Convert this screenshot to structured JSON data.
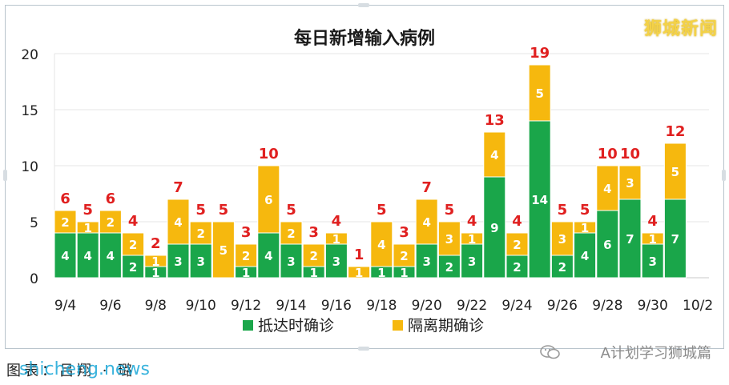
{
  "watermark": "狮城新闻",
  "caption": "图表：吕翔 · 璐",
  "caption_source": "shicheng.news",
  "account": "A计划学习狮城篇",
  "colors": {
    "arrived": "#1aa64a",
    "quarantine": "#f6b80e",
    "total_label": "#e02020"
  },
  "chart_data": {
    "type": "bar",
    "stacked": true,
    "title": "每日新增输入病例",
    "xlabel": "",
    "ylabel": "",
    "ylim": [
      0,
      20
    ],
    "yticks": [
      0,
      5,
      10,
      15,
      20
    ],
    "grid": true,
    "legend_position": "bottom",
    "categories": [
      "9/4",
      "9/5",
      "9/6",
      "9/7",
      "9/8",
      "9/9",
      "9/10",
      "9/11",
      "9/12",
      "9/13",
      "9/14",
      "9/15",
      "9/16",
      "9/17",
      "9/18",
      "9/19",
      "9/20",
      "9/21",
      "9/22",
      "9/23",
      "9/24",
      "9/25",
      "9/26",
      "9/27",
      "9/28",
      "9/29",
      "9/30",
      "10/1"
    ],
    "x_tick_labels": [
      "9/4",
      "9/6",
      "9/8",
      "9/10",
      "9/12",
      "9/14",
      "9/16",
      "9/18",
      "9/20",
      "9/22",
      "9/24",
      "9/26",
      "9/28",
      "9/30",
      "10/2"
    ],
    "series": [
      {
        "name": "抵达时确诊",
        "values": [
          4,
          4,
          4,
          2,
          1,
          3,
          3,
          0,
          1,
          4,
          3,
          1,
          3,
          0,
          1,
          1,
          3,
          2,
          3,
          9,
          2,
          14,
          2,
          4,
          6,
          7,
          3,
          7
        ]
      },
      {
        "name": "隔离期确诊",
        "values": [
          2,
          1,
          2,
          2,
          1,
          4,
          2,
          5,
          2,
          6,
          2,
          2,
          1,
          1,
          4,
          2,
          4,
          3,
          1,
          4,
          2,
          5,
          3,
          1,
          4,
          3,
          1,
          5
        ]
      }
    ],
    "totals": [
      6,
      5,
      6,
      4,
      2,
      7,
      5,
      5,
      3,
      10,
      5,
      3,
      4,
      1,
      5,
      3,
      7,
      5,
      4,
      13,
      4,
      19,
      5,
      5,
      10,
      10,
      4,
      12
    ]
  }
}
